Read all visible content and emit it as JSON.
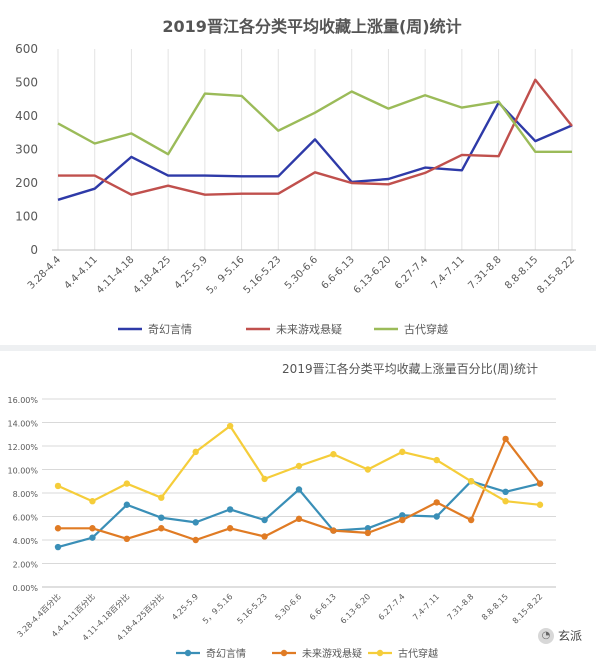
{
  "chart_data": [
    {
      "type": "line",
      "title": "2019晋江各分类平均收藏上涨量(周)统计",
      "categories": [
        "3.28-4.4",
        "4.4-4.11",
        "4.11-4.18",
        "4.18-4.25",
        "4.25-5.9",
        "5。9-5.16",
        "5.16-5.23",
        "5.30-6.6",
        "6.6-6.13",
        "6.13-6.20",
        "6.27-7.4",
        "7.4-7.11",
        "7.31-8.8",
        "8.8-8.15",
        "8.15-8.22"
      ],
      "ylim": [
        0,
        600
      ],
      "yticks": [
        "0",
        "100",
        "200",
        "300",
        "400",
        "500",
        "600"
      ],
      "grid": "vertical",
      "legend": "bottom",
      "series": [
        {
          "name": "奇幻言情",
          "color": "#2e3aa8",
          "values": [
            150,
            183,
            278,
            222,
            222,
            220,
            220,
            330,
            203,
            212,
            246,
            238,
            440,
            325,
            372
          ]
        },
        {
          "name": "未来游戏悬疑",
          "color": "#c0504d",
          "values": [
            222,
            222,
            165,
            192,
            165,
            168,
            168,
            232,
            200,
            196,
            230,
            284,
            280,
            508,
            370
          ]
        },
        {
          "name": "古代穿越",
          "color": "#9bbb59",
          "values": [
            378,
            318,
            348,
            286,
            467,
            460,
            356,
            410,
            473,
            422,
            462,
            425,
            443,
            293,
            293
          ]
        }
      ]
    },
    {
      "type": "line",
      "title": "2019晋江各分类平均收藏上涨量百分比(周)统计",
      "categories": [
        "3.28-4.4百分比",
        "4.4-4.11百分比",
        "4.11-4.18百分比",
        "4.18-4.25百分比",
        "4.25-5.9",
        "5，9.5.16",
        "5.16-5.23",
        "5.30-6.6",
        "6.6-6.13",
        "6.13-6.20",
        "6.27-7.4",
        "7.4-7.11",
        "7.31-8.8",
        "8.8-8.15",
        "8.15-8.22"
      ],
      "ylim": [
        0,
        16
      ],
      "yticks": [
        "0.00%",
        "2.00%",
        "4.00%",
        "6.00%",
        "8.00%",
        "10.00%",
        "12.00%",
        "14.00%",
        "16.00%"
      ],
      "grid": "horizontal",
      "legend": "bottom",
      "series": [
        {
          "name": "奇幻言情",
          "color": "#3a8fb7",
          "values": [
            3.4,
            4.2,
            7.0,
            5.9,
            5.5,
            6.6,
            5.7,
            8.3,
            4.8,
            5.0,
            6.1,
            6.0,
            9.0,
            8.1,
            8.8
          ]
        },
        {
          "name": "未来游戏悬疑",
          "color": "#e07b24",
          "values": [
            5.0,
            5.0,
            4.1,
            5.0,
            4.0,
            5.0,
            4.3,
            5.8,
            4.8,
            4.6,
            5.7,
            7.2,
            5.7,
            12.6,
            8.8
          ]
        },
        {
          "name": "古代穿越",
          "color": "#f5cd3a",
          "values": [
            8.6,
            7.3,
            8.8,
            7.6,
            11.5,
            13.7,
            9.2,
            10.3,
            11.3,
            10.0,
            11.5,
            10.8,
            9.0,
            7.3,
            7.0
          ]
        }
      ]
    }
  ],
  "watermark": {
    "icon": "wechat-icon",
    "glyph": "◔",
    "text": "玄派"
  }
}
